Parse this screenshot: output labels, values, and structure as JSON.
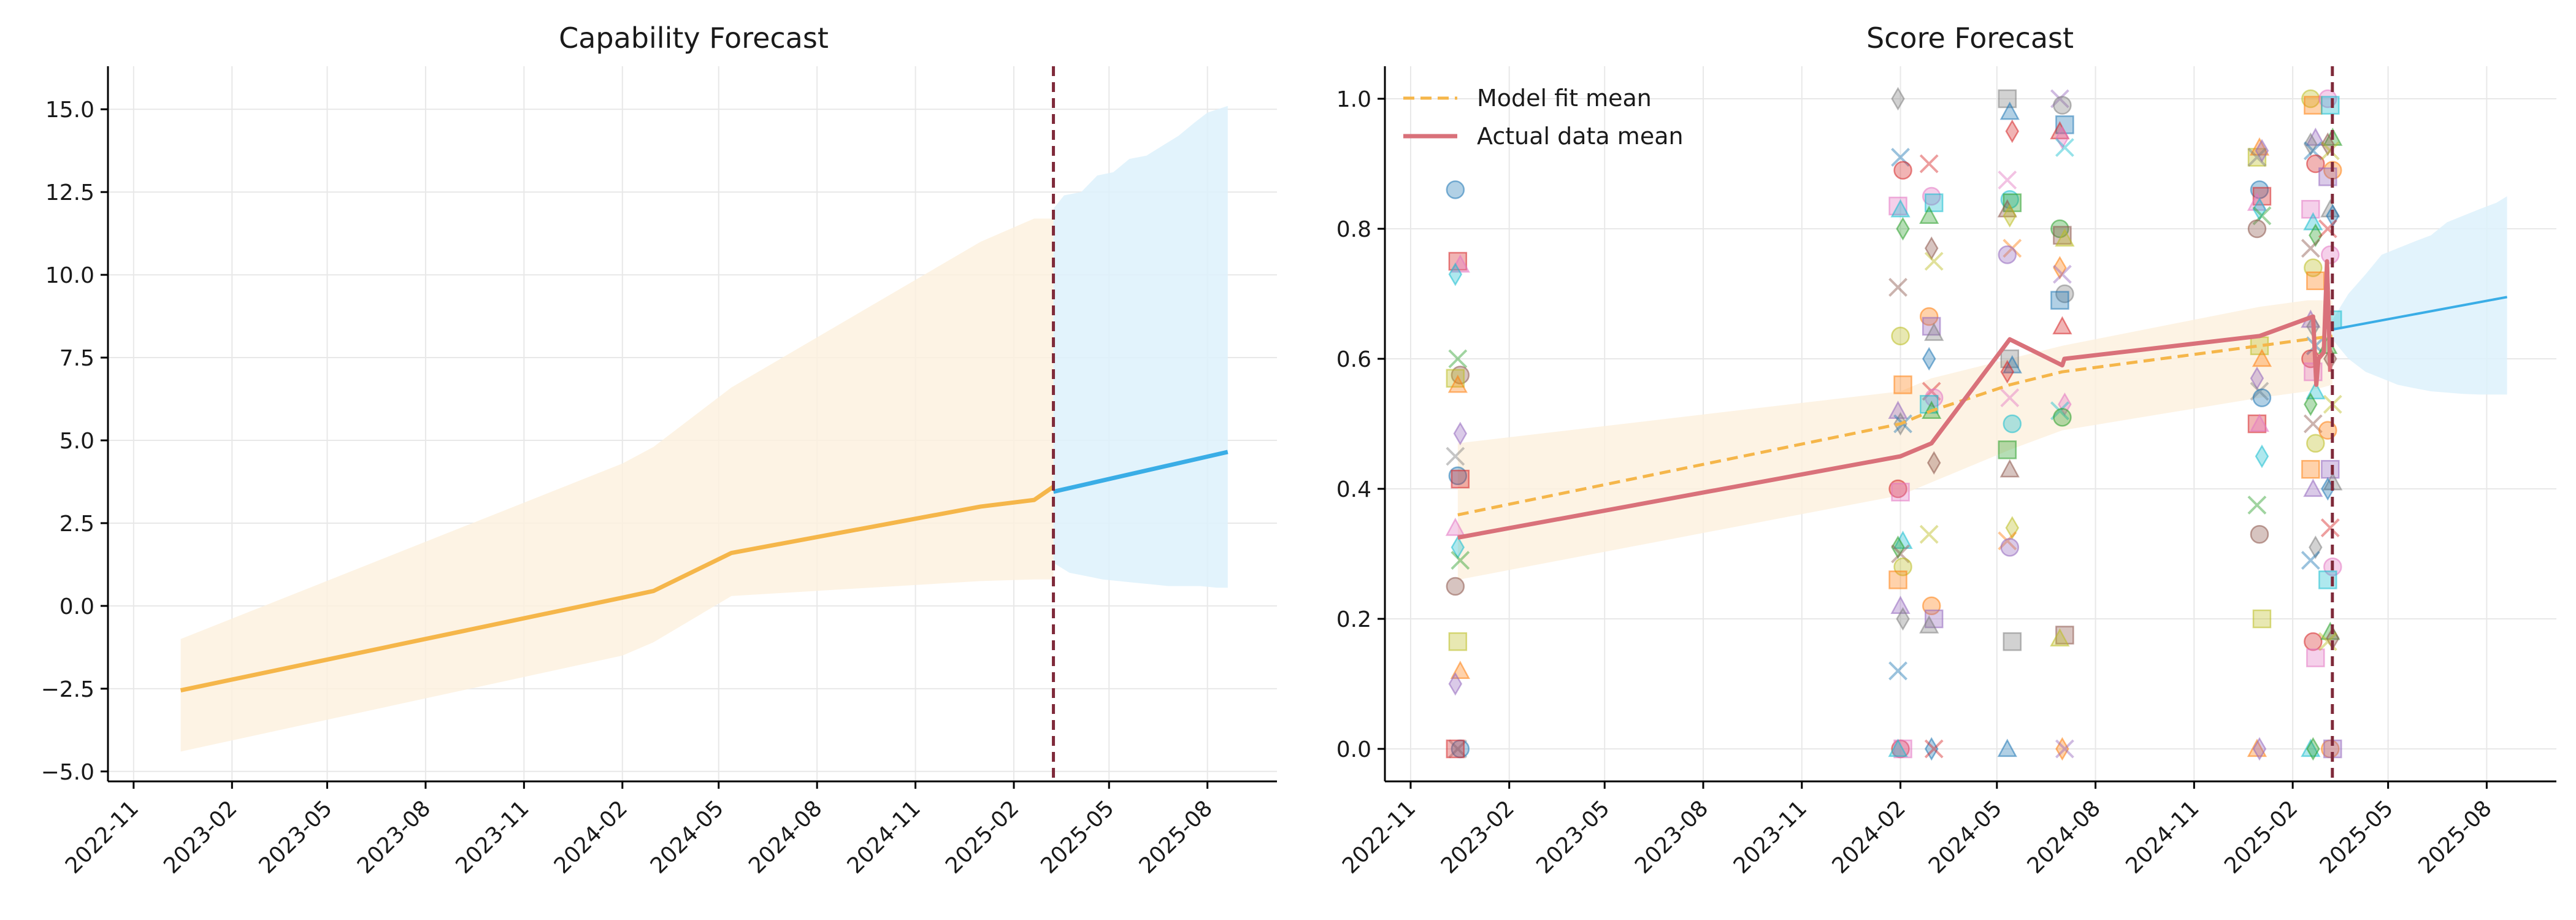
{
  "colors": {
    "model": "#F5B64A",
    "model_band": "#FDF0DD",
    "forecast": "#3AADE6",
    "forecast_band": "#DDF1FC",
    "actual": "#D9717A",
    "cutoff": "#7F2A3A",
    "grid": "#e8e8e8"
  },
  "chart_data": [
    {
      "type": "line",
      "title": "Capability Forecast",
      "xlabel": "",
      "ylabel": "",
      "x_range": [
        "2022-10-08",
        "2025-10-05"
      ],
      "ylim": [
        -5.3,
        16.3
      ],
      "x_ticks": [
        "2022-11",
        "2023-02",
        "2023-05",
        "2023-08",
        "2023-11",
        "2024-02",
        "2024-05",
        "2024-08",
        "2024-11",
        "2025-02",
        "2025-05",
        "2025-08"
      ],
      "y_ticks": [
        -5.0,
        -2.5,
        0.0,
        2.5,
        5.0,
        7.5,
        10.0,
        12.5,
        15.0
      ],
      "y_tick_labels": [
        "−5.0",
        "−2.5",
        "0.0",
        "2.5",
        "5.0",
        "7.5",
        "10.0",
        "12.5",
        "15.0"
      ],
      "grid": true,
      "cutoff_date": "2025-03-10",
      "series": [
        {
          "role": "model",
          "x": [
            "2022-12-15",
            "2024-02-01",
            "2024-03-01",
            "2024-05-13",
            "2025-01-01",
            "2025-02-20",
            "2025-03-10"
          ],
          "y": [
            -2.55,
            0.25,
            0.45,
            1.6,
            3.0,
            3.2,
            3.6
          ],
          "band_upper": [
            -1.0,
            4.3,
            4.8,
            6.6,
            11.0,
            11.7,
            11.7
          ],
          "band_lower": [
            -4.4,
            -1.5,
            -1.1,
            0.3,
            0.75,
            0.8,
            0.8
          ]
        },
        {
          "role": "forecast",
          "x": [
            "2025-03-10",
            "2025-08-20"
          ],
          "y": [
            3.45,
            4.65
          ],
          "band_upper_x": [
            "2025-03-10",
            "2025-03-20",
            "2025-04-05",
            "2025-04-20",
            "2025-05-05",
            "2025-05-20",
            "2025-06-05",
            "2025-06-20",
            "2025-07-05",
            "2025-07-20",
            "2025-08-01",
            "2025-08-20"
          ],
          "band_upper": [
            12.0,
            12.4,
            12.5,
            13.0,
            13.1,
            13.5,
            13.6,
            13.9,
            14.2,
            14.6,
            14.9,
            15.1
          ],
          "band_lower_x": [
            "2025-03-10",
            "2025-03-25",
            "2025-04-10",
            "2025-04-25",
            "2025-05-10",
            "2025-05-25",
            "2025-06-10",
            "2025-06-25",
            "2025-07-10",
            "2025-07-25",
            "2025-08-10",
            "2025-08-20"
          ],
          "band_lower": [
            1.3,
            1.0,
            0.9,
            0.8,
            0.75,
            0.7,
            0.65,
            0.6,
            0.6,
            0.6,
            0.55,
            0.55
          ]
        }
      ]
    },
    {
      "type": "scatter",
      "title": "Score Forecast",
      "xlabel": "",
      "ylabel": "",
      "x_range": [
        "2022-10-08",
        "2025-10-05"
      ],
      "ylim": [
        -0.05,
        1.05
      ],
      "x_ticks": [
        "2022-11",
        "2023-02",
        "2023-05",
        "2023-08",
        "2023-11",
        "2024-02",
        "2024-05",
        "2024-08",
        "2024-11",
        "2025-02",
        "2025-05",
        "2025-08"
      ],
      "y_ticks": [
        0.0,
        0.2,
        0.4,
        0.6,
        0.8,
        1.0
      ],
      "y_tick_labels": [
        "0.0",
        "0.2",
        "0.4",
        "0.6",
        "0.8",
        "1.0"
      ],
      "grid": true,
      "cutoff_date": "2025-03-10",
      "legend": {
        "placement": "upper-left",
        "entries": [
          {
            "label": "Model fit mean",
            "style": "dashed",
            "color_key": "model"
          },
          {
            "label": "Actual data mean",
            "style": "solid",
            "color_key": "actual"
          }
        ]
      },
      "series": [
        {
          "name": "Model fit mean",
          "role": "model",
          "x": [
            "2022-12-15",
            "2024-02-01",
            "2024-03-01",
            "2024-05-13",
            "2024-07-01",
            "2025-01-01",
            "2025-02-15",
            "2025-03-10"
          ],
          "y": [
            0.36,
            0.5,
            0.52,
            0.56,
            0.58,
            0.62,
            0.63,
            0.635
          ],
          "band_upper": [
            0.47,
            0.55,
            0.57,
            0.6,
            0.62,
            0.68,
            0.69,
            0.69
          ],
          "band_lower": [
            0.26,
            0.39,
            0.41,
            0.46,
            0.49,
            0.54,
            0.55,
            0.56
          ]
        },
        {
          "name": "Actual data mean",
          "role": "actual",
          "x": [
            "2022-12-15",
            "2024-02-01",
            "2024-03-01",
            "2024-05-13",
            "2024-07-01",
            "2024-07-03",
            "2025-01-01",
            "2025-02-20",
            "2025-02-23",
            "2025-02-25",
            "2025-03-02",
            "2025-03-05",
            "2025-03-08"
          ],
          "y": [
            0.325,
            0.45,
            0.47,
            0.63,
            0.59,
            0.6,
            0.635,
            0.665,
            0.56,
            0.6,
            0.61,
            0.75,
            0.58
          ]
        },
        {
          "role": "forecast",
          "x": [
            "2025-03-10",
            "2025-08-20"
          ],
          "y": [
            0.645,
            0.695
          ],
          "band_upper_x": [
            "2025-03-10",
            "2025-03-25",
            "2025-04-10",
            "2025-04-25",
            "2025-05-10",
            "2025-05-25",
            "2025-06-10",
            "2025-06-25",
            "2025-07-10",
            "2025-07-25",
            "2025-08-10",
            "2025-08-20"
          ],
          "band_upper": [
            0.66,
            0.7,
            0.73,
            0.76,
            0.77,
            0.78,
            0.79,
            0.81,
            0.82,
            0.83,
            0.84,
            0.85
          ],
          "band_lower_x": [
            "2025-03-10",
            "2025-03-25",
            "2025-04-10",
            "2025-04-25",
            "2025-05-10",
            "2025-05-25",
            "2025-06-10",
            "2025-06-25",
            "2025-07-10",
            "2025-07-25",
            "2025-08-10",
            "2025-08-20"
          ],
          "band_lower": [
            0.63,
            0.6,
            0.58,
            0.57,
            0.56,
            0.555,
            0.55,
            0.548,
            0.546,
            0.545,
            0.545,
            0.545
          ]
        }
      ],
      "marker_palette": [
        "#1f77b4",
        "#ff7f0e",
        "#2ca02c",
        "#d62728",
        "#9467bd",
        "#8c564b",
        "#e377c2",
        "#7f7f7f",
        "#bcbd22",
        "#17becf"
      ],
      "marker_shapes": [
        "circle",
        "square",
        "triangle",
        "diamond",
        "x"
      ],
      "scatter_points": [
        {
          "x": "2022-12-15",
          "ys": [
            0.86,
            0.75,
            0.745,
            0.73,
            0.6,
            0.575,
            0.57,
            0.56,
            0.485,
            0.45,
            0.42,
            0.415,
            0.34,
            0.31,
            0.29,
            0.25,
            0.165,
            0.12,
            0.1,
            0.0,
            0.0,
            0.0
          ]
        },
        {
          "x": "2024-02-01",
          "ys": [
            1.0,
            0.91,
            0.89,
            0.835,
            0.83,
            0.8,
            0.71,
            0.635,
            0.56,
            0.52,
            0.5,
            0.5,
            0.4,
            0.395,
            0.32,
            0.31,
            0.3,
            0.28,
            0.26,
            0.22,
            0.2,
            0.12,
            0.0,
            0.0,
            0.0
          ]
        },
        {
          "x": "2024-03-01",
          "ys": [
            0.9,
            0.85,
            0.84,
            0.82,
            0.77,
            0.75,
            0.665,
            0.65,
            0.64,
            0.6,
            0.55,
            0.54,
            0.53,
            0.52,
            0.44,
            0.33,
            0.22,
            0.2,
            0.19,
            0.0,
            0.0
          ]
        },
        {
          "x": "2024-05-13",
          "ys": [
            1.0,
            0.98,
            0.95,
            0.875,
            0.845,
            0.84,
            0.83,
            0.82,
            0.77,
            0.76,
            0.6,
            0.59,
            0.58,
            0.54,
            0.5,
            0.46,
            0.43,
            0.34,
            0.32,
            0.31,
            0.165,
            0.0
          ]
        },
        {
          "x": "2024-07-01",
          "ys": [
            1.0,
            0.99,
            0.96,
            0.95,
            0.94,
            0.925,
            0.8,
            0.79,
            0.785,
            0.74,
            0.73,
            0.7,
            0.69,
            0.65,
            0.53,
            0.52,
            0.51,
            0.175,
            0.17,
            0.0,
            0.0
          ]
        },
        {
          "x": "2025-01-01",
          "ys": [
            0.91,
            0.925,
            0.92,
            0.91,
            0.86,
            0.85,
            0.84,
            0.83,
            0.82,
            0.8,
            0.62,
            0.6,
            0.57,
            0.55,
            0.54,
            0.5,
            0.5,
            0.45,
            0.375,
            0.33,
            0.2,
            0.0,
            0.0
          ]
        },
        {
          "x": "2025-02-20",
          "ys": [
            1.0,
            0.99,
            0.94,
            0.93,
            0.92,
            0.9,
            0.83,
            0.81,
            0.79,
            0.77,
            0.74,
            0.72,
            0.66,
            0.65,
            0.62,
            0.6,
            0.58,
            0.55,
            0.53,
            0.5,
            0.47,
            0.43,
            0.4,
            0.31,
            0.29,
            0.165,
            0.14,
            0.0,
            0.0
          ]
        },
        {
          "x": "2025-03-08",
          "ys": [
            1.0,
            0.99,
            0.94,
            0.93,
            0.92,
            0.89,
            0.88,
            0.83,
            0.82,
            0.8,
            0.76,
            0.66,
            0.62,
            0.6,
            0.53,
            0.49,
            0.43,
            0.41,
            0.4,
            0.34,
            0.28,
            0.26,
            0.18,
            0.17,
            0.165,
            0.0,
            0.0
          ]
        }
      ]
    }
  ]
}
